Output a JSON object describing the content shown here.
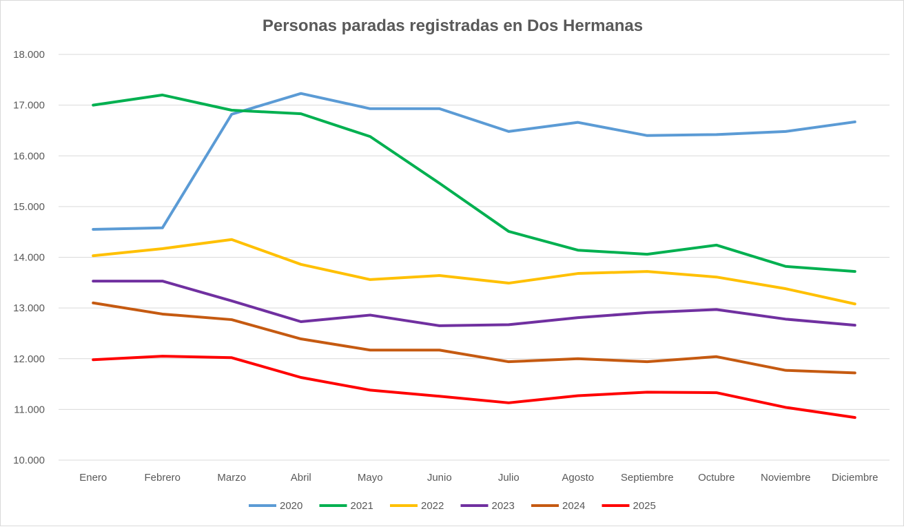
{
  "chart_data": {
    "type": "line",
    "title": "Personas paradas registradas en Dos Hermanas",
    "xlabel": "",
    "ylabel": "",
    "ylim": [
      10000,
      18000
    ],
    "yticks": [
      10000,
      11000,
      12000,
      13000,
      14000,
      15000,
      16000,
      17000,
      18000
    ],
    "ytick_labels": [
      "10.000",
      "11.000",
      "12.000",
      "13.000",
      "14.000",
      "15.000",
      "16.000",
      "17.000",
      "18.000"
    ],
    "grid": true,
    "legend_position": "bottom",
    "categories": [
      "Enero",
      "Febrero",
      "Marzo",
      "Abril",
      "Mayo",
      "Junio",
      "Julio",
      "Agosto",
      "Septiembre",
      "Octubre",
      "Noviembre",
      "Diciembre"
    ],
    "series": [
      {
        "name": "2020",
        "color": "#5B9BD5",
        "values": [
          14550,
          14580,
          16820,
          17230,
          16930,
          16930,
          16480,
          16660,
          16400,
          16420,
          16480,
          16670
        ]
      },
      {
        "name": "2021",
        "color": "#00B050",
        "values": [
          17000,
          17200,
          16900,
          16830,
          16380,
          15460,
          14510,
          14140,
          14060,
          14240,
          13820,
          13720
        ]
      },
      {
        "name": "2022",
        "color": "#FFC000",
        "values": [
          14030,
          14170,
          14350,
          13860,
          13560,
          13640,
          13490,
          13680,
          13720,
          13610,
          13380,
          13080
        ]
      },
      {
        "name": "2023",
        "color": "#7030A0",
        "values": [
          13530,
          13530,
          13140,
          12730,
          12860,
          12650,
          12670,
          12810,
          12910,
          12970,
          12780,
          12660
        ]
      },
      {
        "name": "2024",
        "color": "#C55A11",
        "values": [
          13100,
          12880,
          12770,
          12390,
          12170,
          12170,
          11940,
          12000,
          11940,
          12040,
          11770,
          11720
        ]
      },
      {
        "name": "2025",
        "color": "#FF0000",
        "values": [
          11980,
          12050,
          12020,
          11630,
          11380,
          11260,
          11130,
          11270,
          11340,
          11330,
          11040,
          10840
        ]
      }
    ]
  }
}
